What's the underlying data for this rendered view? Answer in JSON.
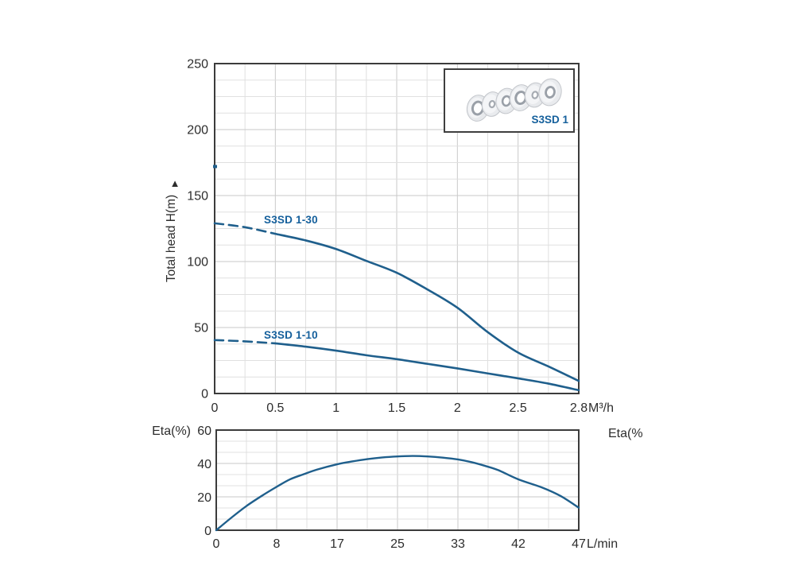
{
  "colors": {
    "background": "#ffffff",
    "curve_blue": "#1f5f8c",
    "label_blue": "#15609c",
    "grid_minor": "#e0e0e0",
    "grid_major": "#c9c9c9",
    "axis": "#3b3b3b",
    "text": "#2d2d2d"
  },
  "inset": {
    "label": "S3SD 1"
  },
  "chart_data": [
    {
      "type": "line",
      "title": "",
      "ylabel": "Total head H(m)",
      "ylabel_arrow": "▲",
      "xlabel": "",
      "x_unit": "M³/h",
      "x_ticks": [
        0,
        0.5,
        1,
        1.5,
        2,
        2.5,
        2.8
      ],
      "x_tick_labels": [
        "0",
        "0.5",
        "1",
        "1.5",
        "2",
        "2.5",
        "2.8"
      ],
      "y_ticks": [
        0,
        50,
        100,
        150,
        200,
        250
      ],
      "ylim": [
        0,
        250
      ],
      "grid": {
        "x_minor_divisions": 12,
        "y_minor_divisions": 20,
        "y_major_every": 4
      },
      "legend_position": "inline-labels",
      "stray_mark_h": 172,
      "series": [
        {
          "name": "S3SD 1-30",
          "dashed_until": 0.5,
          "points": [
            [
              0,
              129
            ],
            [
              0.25,
              126
            ],
            [
              0.5,
              121
            ],
            [
              0.75,
              116
            ],
            [
              1,
              109.5
            ],
            [
              1.25,
              100.5
            ],
            [
              1.5,
              91.5
            ],
            [
              1.75,
              79
            ],
            [
              2,
              65
            ],
            [
              2.25,
              46.5
            ],
            [
              2.5,
              31
            ],
            [
              2.65,
              20.5
            ],
            [
              2.8,
              9.5
            ]
          ]
        },
        {
          "name": "S3SD 1-10",
          "dashed_until": 0.5,
          "points": [
            [
              0,
              40.5
            ],
            [
              0.25,
              39.5
            ],
            [
              0.5,
              38
            ],
            [
              0.75,
              35.5
            ],
            [
              1,
              32.5
            ],
            [
              1.25,
              29
            ],
            [
              1.5,
              26
            ],
            [
              1.75,
              22.5
            ],
            [
              2,
              19
            ],
            [
              2.25,
              15.2
            ],
            [
              2.5,
              11.5
            ],
            [
              2.65,
              7.5
            ],
            [
              2.8,
              2.5
            ]
          ]
        }
      ]
    },
    {
      "type": "line",
      "title": "",
      "ylabel_left": "Eta(%)",
      "ylabel_right": "Eta(%",
      "x_unit": "L/min",
      "x_ticks": [
        0,
        8,
        17,
        25,
        33,
        42,
        47
      ],
      "x_tick_labels": [
        "0",
        "8",
        "17",
        "25",
        "33",
        "42",
        "47"
      ],
      "y_ticks": [
        0,
        20,
        40,
        60
      ],
      "ylim": [
        0,
        60
      ],
      "grid": {
        "x_minor_divisions": 12,
        "y_minor_divisions": 9,
        "y_major_every": 3
      },
      "series": [
        {
          "name": "Eta",
          "points": [
            [
              0,
              0
            ],
            [
              2,
              7.5
            ],
            [
              4,
              14.5
            ],
            [
              6,
              20.5
            ],
            [
              8,
              26
            ],
            [
              10,
              30.5
            ],
            [
              12,
              33.5
            ],
            [
              14,
              36.3
            ],
            [
              17,
              39.5
            ],
            [
              19,
              41.2
            ],
            [
              21,
              42.6
            ],
            [
              23,
              43.6
            ],
            [
              25,
              44.2
            ],
            [
              27,
              44.5
            ],
            [
              29,
              44.2
            ],
            [
              31,
              43.5
            ],
            [
              33,
              42.4
            ],
            [
              35,
              40.8
            ],
            [
              37,
              38.6
            ],
            [
              39,
              36
            ],
            [
              42,
              30.5
            ],
            [
              44,
              25.5
            ],
            [
              45.5,
              20.5
            ],
            [
              47,
              13.5
            ]
          ]
        }
      ]
    }
  ]
}
